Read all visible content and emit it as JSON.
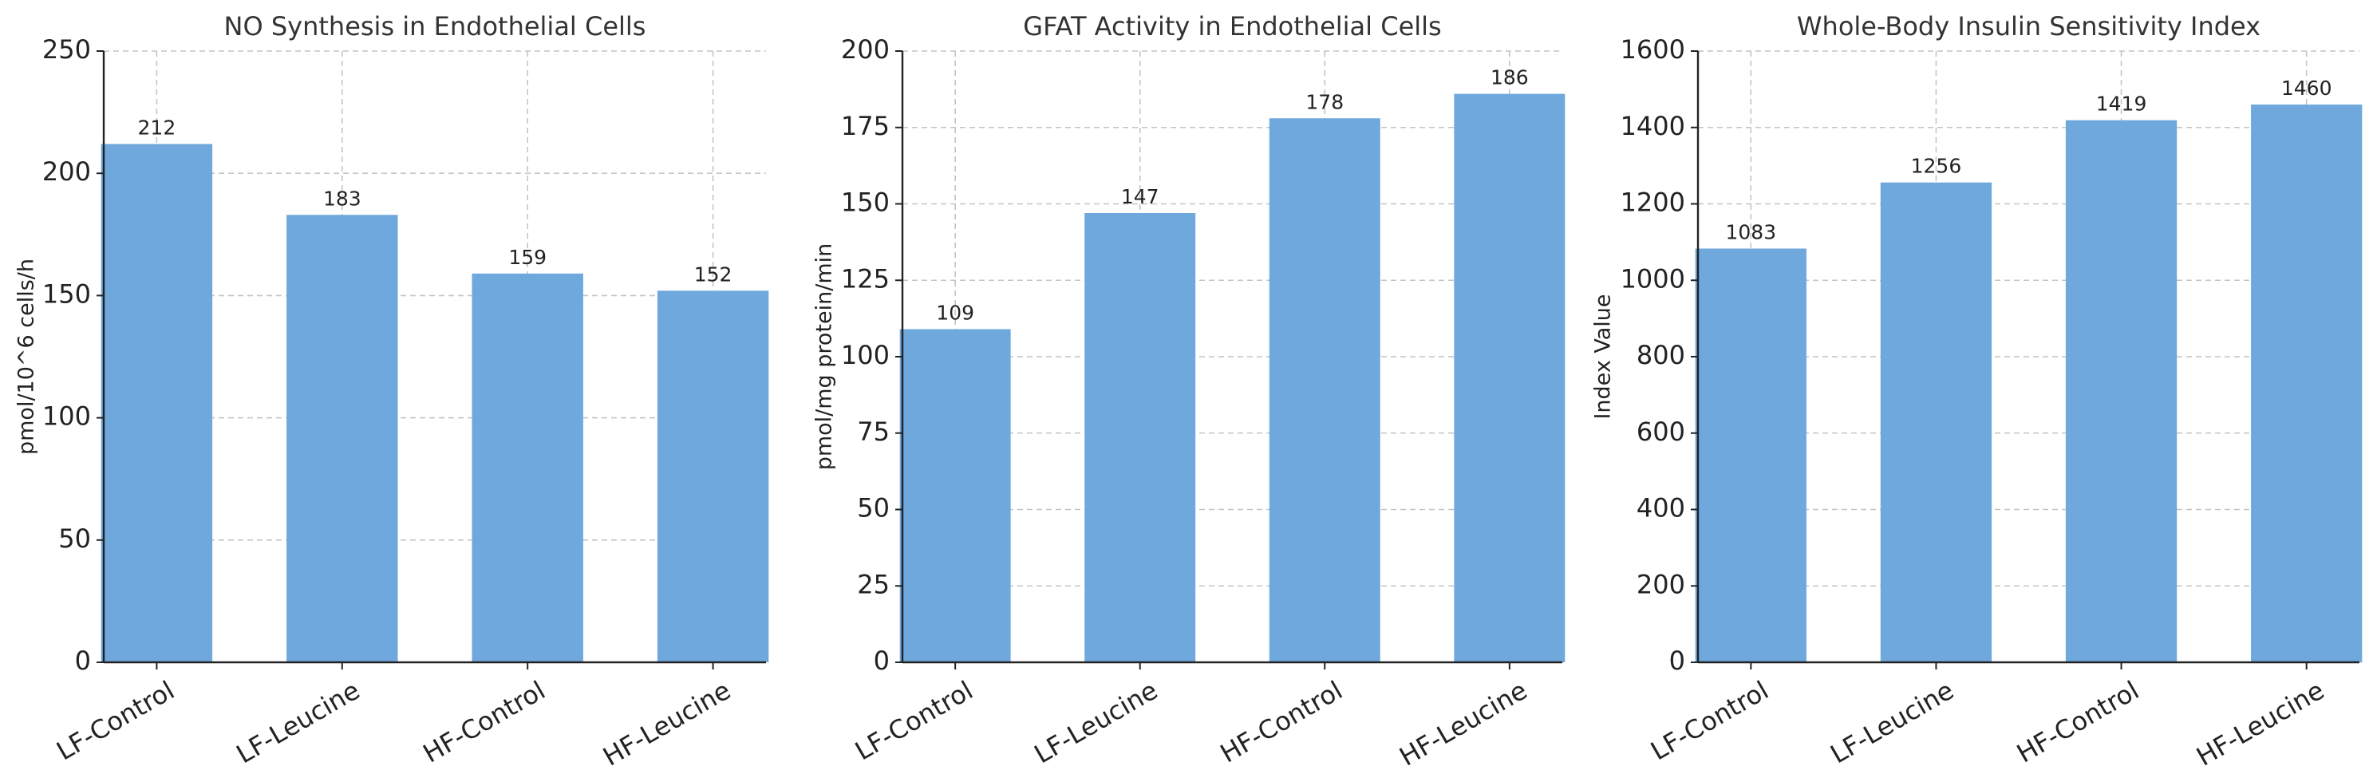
{
  "chart_data": [
    {
      "type": "bar",
      "title": "NO Synthesis in Endothelial Cells",
      "xlabel": "",
      "ylabel": "pmol/10^6 cells/h",
      "categories": [
        "LF-Control",
        "LF-Leucine",
        "HF-Control",
        "HF-Leucine"
      ],
      "values": [
        212,
        183,
        159,
        152
      ],
      "value_labels": [
        "212",
        "183",
        "159",
        "152"
      ],
      "ylim": [
        0,
        250
      ],
      "yticks": [
        0,
        50,
        100,
        150,
        200,
        250
      ],
      "grid": true,
      "color": "#6fa8dc"
    },
    {
      "type": "bar",
      "title": "GFAT Activity in Endothelial Cells",
      "xlabel": "",
      "ylabel": "pmol/mg protein/min",
      "categories": [
        "LF-Control",
        "LF-Leucine",
        "HF-Control",
        "HF-Leucine"
      ],
      "values": [
        109,
        147,
        178,
        186
      ],
      "value_labels": [
        "109",
        "147",
        "178",
        "186"
      ],
      "ylim": [
        0,
        200
      ],
      "yticks": [
        0,
        25,
        50,
        75,
        100,
        125,
        150,
        175,
        200
      ],
      "grid": true,
      "color": "#6fa8dc"
    },
    {
      "type": "bar",
      "title": "Whole-Body Insulin Sensitivity Index",
      "xlabel": "",
      "ylabel": "Index Value",
      "categories": [
        "LF-Control",
        "LF-Leucine",
        "HF-Control",
        "HF-Leucine"
      ],
      "values": [
        1083,
        1256,
        1419,
        1460
      ],
      "value_labels": [
        "1083",
        "1256",
        "1419",
        "1460"
      ],
      "ylim": [
        0,
        1600
      ],
      "yticks": [
        0,
        200,
        400,
        600,
        800,
        1000,
        1200,
        1400,
        1600
      ],
      "grid": true,
      "color": "#6fa8dc"
    }
  ]
}
